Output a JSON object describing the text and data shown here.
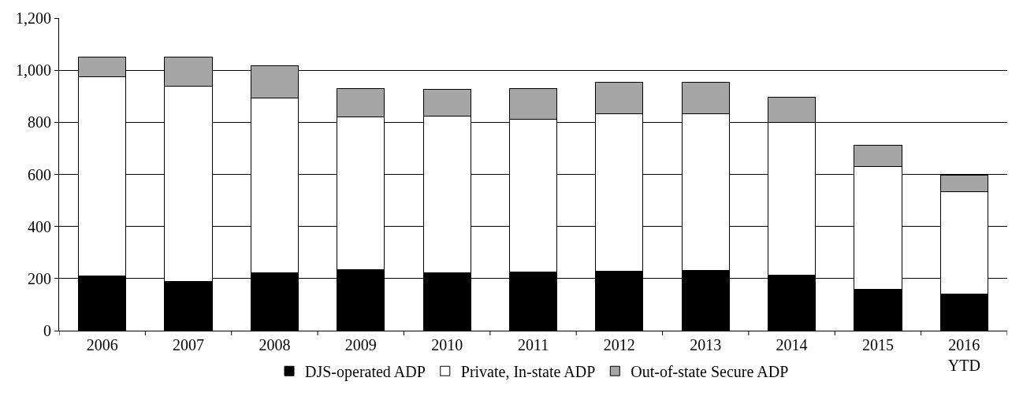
{
  "chart_data": {
    "type": "bar",
    "stacked": true,
    "categories": [
      "2006",
      "2007",
      "2008",
      "2009",
      "2010",
      "2011",
      "2012",
      "2013",
      "2014",
      "2015",
      "2016\nYTD"
    ],
    "series": [
      {
        "name": "DJS-operated ADP",
        "color": "#000000",
        "values": [
          210,
          188,
          222,
          235,
          222,
          225,
          228,
          232,
          212,
          160,
          142
        ]
      },
      {
        "name": "Private, In-state ADP",
        "color": "#ffffff",
        "values": [
          765,
          752,
          671,
          585,
          603,
          587,
          604,
          601,
          588,
          470,
          391
        ]
      },
      {
        "name": "Out-of-state Secure ADP",
        "color": "#a6a6a6",
        "values": [
          75,
          110,
          124,
          110,
          102,
          116,
          121,
          120,
          97,
          83,
          65
        ]
      }
    ],
    "ylim": [
      0,
      1200
    ],
    "yticks": [
      0,
      200,
      400,
      600,
      800,
      {
        "value": 1000,
        "label": "1,000"
      },
      {
        "value": 1200,
        "label": "1,200"
      }
    ],
    "grid": "y",
    "legend": "bottom"
  }
}
